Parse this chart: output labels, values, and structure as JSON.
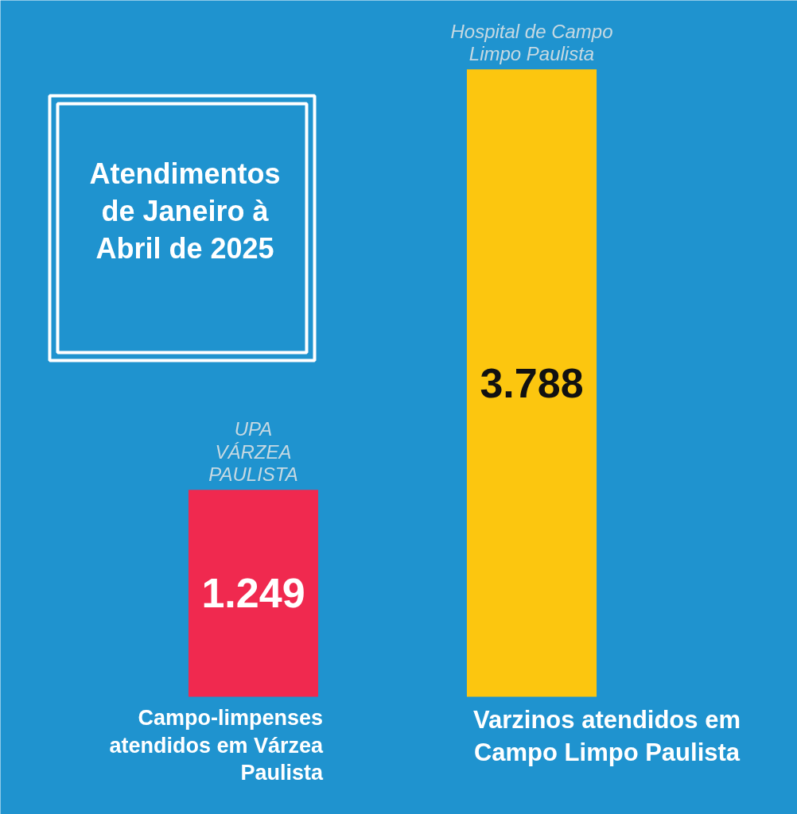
{
  "chart_data": {
    "type": "bar",
    "title": "Atendimentos de Janeiro à Abril de 2025",
    "categories": [
      "Campo-limpenses atendidos em Várzea Paulista",
      "Varzinos atendidos em Campo Limpo Paulista"
    ],
    "values": [
      1249,
      3788
    ],
    "colors": [
      "#f0294f",
      "#fcc60f"
    ],
    "value_labels": [
      "1.249",
      "3.788"
    ],
    "annotations": [
      "UPA\nVÁRZEA\nPAULISTA",
      "Hospital de Campo\nLimpo Paulista"
    ]
  }
}
